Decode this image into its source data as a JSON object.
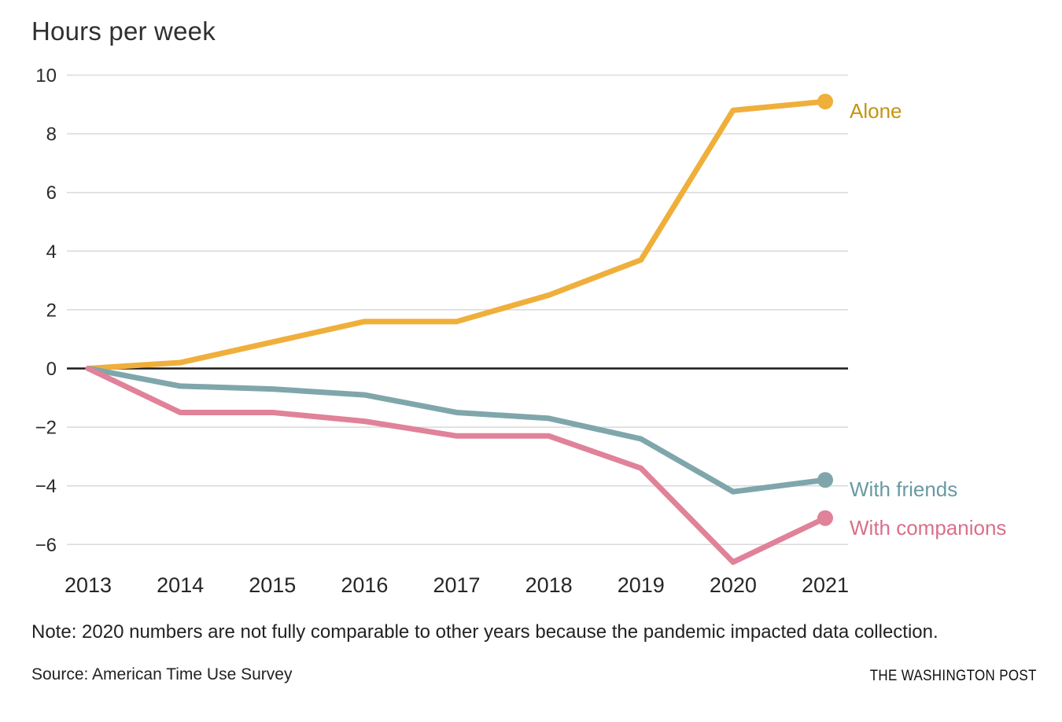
{
  "title": "Hours per week",
  "note": "Note: 2020 numbers are not fully comparable to other years because the pandemic impacted data collection.",
  "source": "Source: American Time Use Survey",
  "credit": "THE WASHINGTON POST",
  "colors": {
    "background": "#ffffff",
    "title_text": "#303030",
    "tick_text": "#2b2b2b",
    "gridline": "#dadada",
    "zero_line": "#1c1c1c",
    "note_text": "#222222",
    "alone_line": "#efaf3b",
    "alone_label": "#c5940f",
    "friends_line": "#7fa6ab",
    "friends_label": "#689aa1",
    "companions_line": "#e08299",
    "companions_label": "#d96f8b"
  },
  "chart_data": {
    "type": "line",
    "title": "Hours per week",
    "xlabel": "",
    "ylabel": "Hours per week",
    "x": [
      2013,
      2014,
      2015,
      2016,
      2017,
      2018,
      2019,
      2020,
      2021
    ],
    "series": [
      {
        "name": "Alone",
        "color": "#efaf3b",
        "label_color": "#c5940f",
        "values": [
          0,
          0.2,
          0.9,
          1.6,
          1.6,
          2.5,
          3.7,
          8.8,
          9.1
        ]
      },
      {
        "name": "With friends",
        "color": "#7fa6ab",
        "label_color": "#689aa1",
        "values": [
          0,
          -0.6,
          -0.7,
          -0.9,
          -1.5,
          -1.7,
          -2.4,
          -4.2,
          -3.8
        ]
      },
      {
        "name": "With companions",
        "color": "#e08299",
        "label_color": "#d96f8b",
        "values": [
          0,
          -1.5,
          -1.5,
          -1.8,
          -2.3,
          -2.3,
          -3.4,
          -6.6,
          -5.1
        ]
      }
    ],
    "ylim": [
      -7.2,
      10.6
    ],
    "yticks": [
      10,
      8,
      6,
      4,
      2,
      0,
      -2,
      -4,
      -6
    ],
    "grid": true,
    "zero_baseline": true,
    "legend_position": "right-of-line-ends",
    "marker": "dot-at-last-point"
  }
}
